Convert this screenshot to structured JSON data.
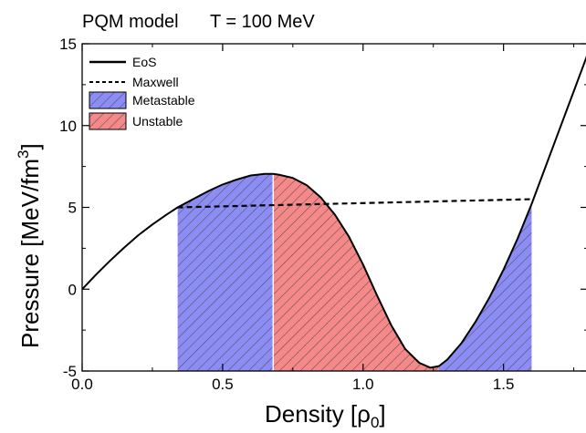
{
  "chart_data": {
    "type": "line",
    "title": "PQM model",
    "subtitle": "T = 100 MeV",
    "xlabel": "Density [ρ",
    "xlabel_sub": "0",
    "xlabel_close": "]",
    "ylabel": "Pressure [MeV/fm",
    "ylabel_sup": "3",
    "ylabel_close": "]",
    "xlim": [
      0.0,
      1.8
    ],
    "ylim": [
      -5,
      15
    ],
    "xticks": [
      0.0,
      0.5,
      1.0,
      1.5
    ],
    "xtick_labels": [
      "0.0",
      "0.5",
      "1.0",
      "1.5"
    ],
    "yticks": [
      -5,
      0,
      5,
      10,
      15
    ],
    "ytick_labels": [
      "-5",
      "0",
      "5",
      "10",
      "15"
    ],
    "legend_position": "top-left",
    "legend": {
      "eos": "EoS",
      "maxwell": "Maxwell",
      "metastable": "Metastable",
      "unstable": "Unstable"
    },
    "colors": {
      "eos": "#000000",
      "maxwell": "#000000",
      "metastable": "#8c8cf5",
      "unstable": "#f58888",
      "hatch": "#4a4a4a"
    },
    "series": [
      {
        "name": "EoS",
        "style": "solid",
        "x": [
          0.0,
          0.05,
          0.1,
          0.15,
          0.2,
          0.25,
          0.3,
          0.34,
          0.4,
          0.45,
          0.5,
          0.55,
          0.6,
          0.65,
          0.68,
          0.7,
          0.75,
          0.8,
          0.85,
          0.9,
          0.95,
          1.0,
          1.05,
          1.1,
          1.15,
          1.2,
          1.24,
          1.27,
          1.3,
          1.35,
          1.4,
          1.45,
          1.5,
          1.55,
          1.6,
          1.65,
          1.7,
          1.75,
          1.8
        ],
        "y": [
          0.0,
          0.9,
          1.75,
          2.55,
          3.3,
          3.95,
          4.55,
          5.0,
          5.55,
          6.0,
          6.4,
          6.7,
          6.95,
          7.05,
          7.05,
          7.0,
          6.8,
          6.35,
          5.6,
          4.55,
          3.2,
          1.5,
          -0.4,
          -2.2,
          -3.65,
          -4.5,
          -4.8,
          -4.7,
          -4.3,
          -3.3,
          -2.0,
          -0.5,
          1.2,
          3.1,
          5.2,
          7.5,
          9.8,
          12.1,
          14.4
        ]
      },
      {
        "name": "Maxwell",
        "style": "dashed",
        "x": [
          0.34,
          1.6
        ],
        "y": [
          5.0,
          5.5
        ]
      }
    ],
    "regions": [
      {
        "name": "Metastable",
        "x_range": [
          0.34,
          0.68
        ]
      },
      {
        "name": "Unstable",
        "x_range": [
          0.68,
          1.27
        ]
      },
      {
        "name": "Metastable",
        "x_range": [
          1.27,
          1.6
        ]
      }
    ]
  }
}
